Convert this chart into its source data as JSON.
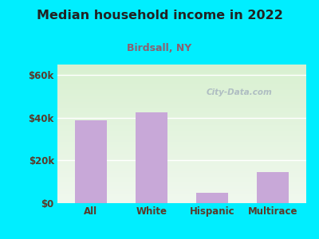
{
  "title": "Median household income in 2022",
  "subtitle": "Birdsall, NY",
  "categories": [
    "All",
    "White",
    "Hispanic",
    "Multirace"
  ],
  "values": [
    39000,
    42500,
    5000,
    14500
  ],
  "bar_color": "#c8a8d8",
  "title_color": "#222222",
  "subtitle_color": "#8b6070",
  "tick_label_color": "#5a3a2a",
  "background_outer": "#00eeff",
  "bg_top": "#d8f0d0",
  "bg_bottom": "#f0f8ee",
  "yticks": [
    0,
    20000,
    40000,
    60000
  ],
  "ytick_labels": [
    "$0",
    "$20k",
    "$40k",
    "$60k"
  ],
  "ylim": [
    0,
    65000
  ],
  "watermark": "City-Data.com",
  "watermark_color": "#aab8c0"
}
